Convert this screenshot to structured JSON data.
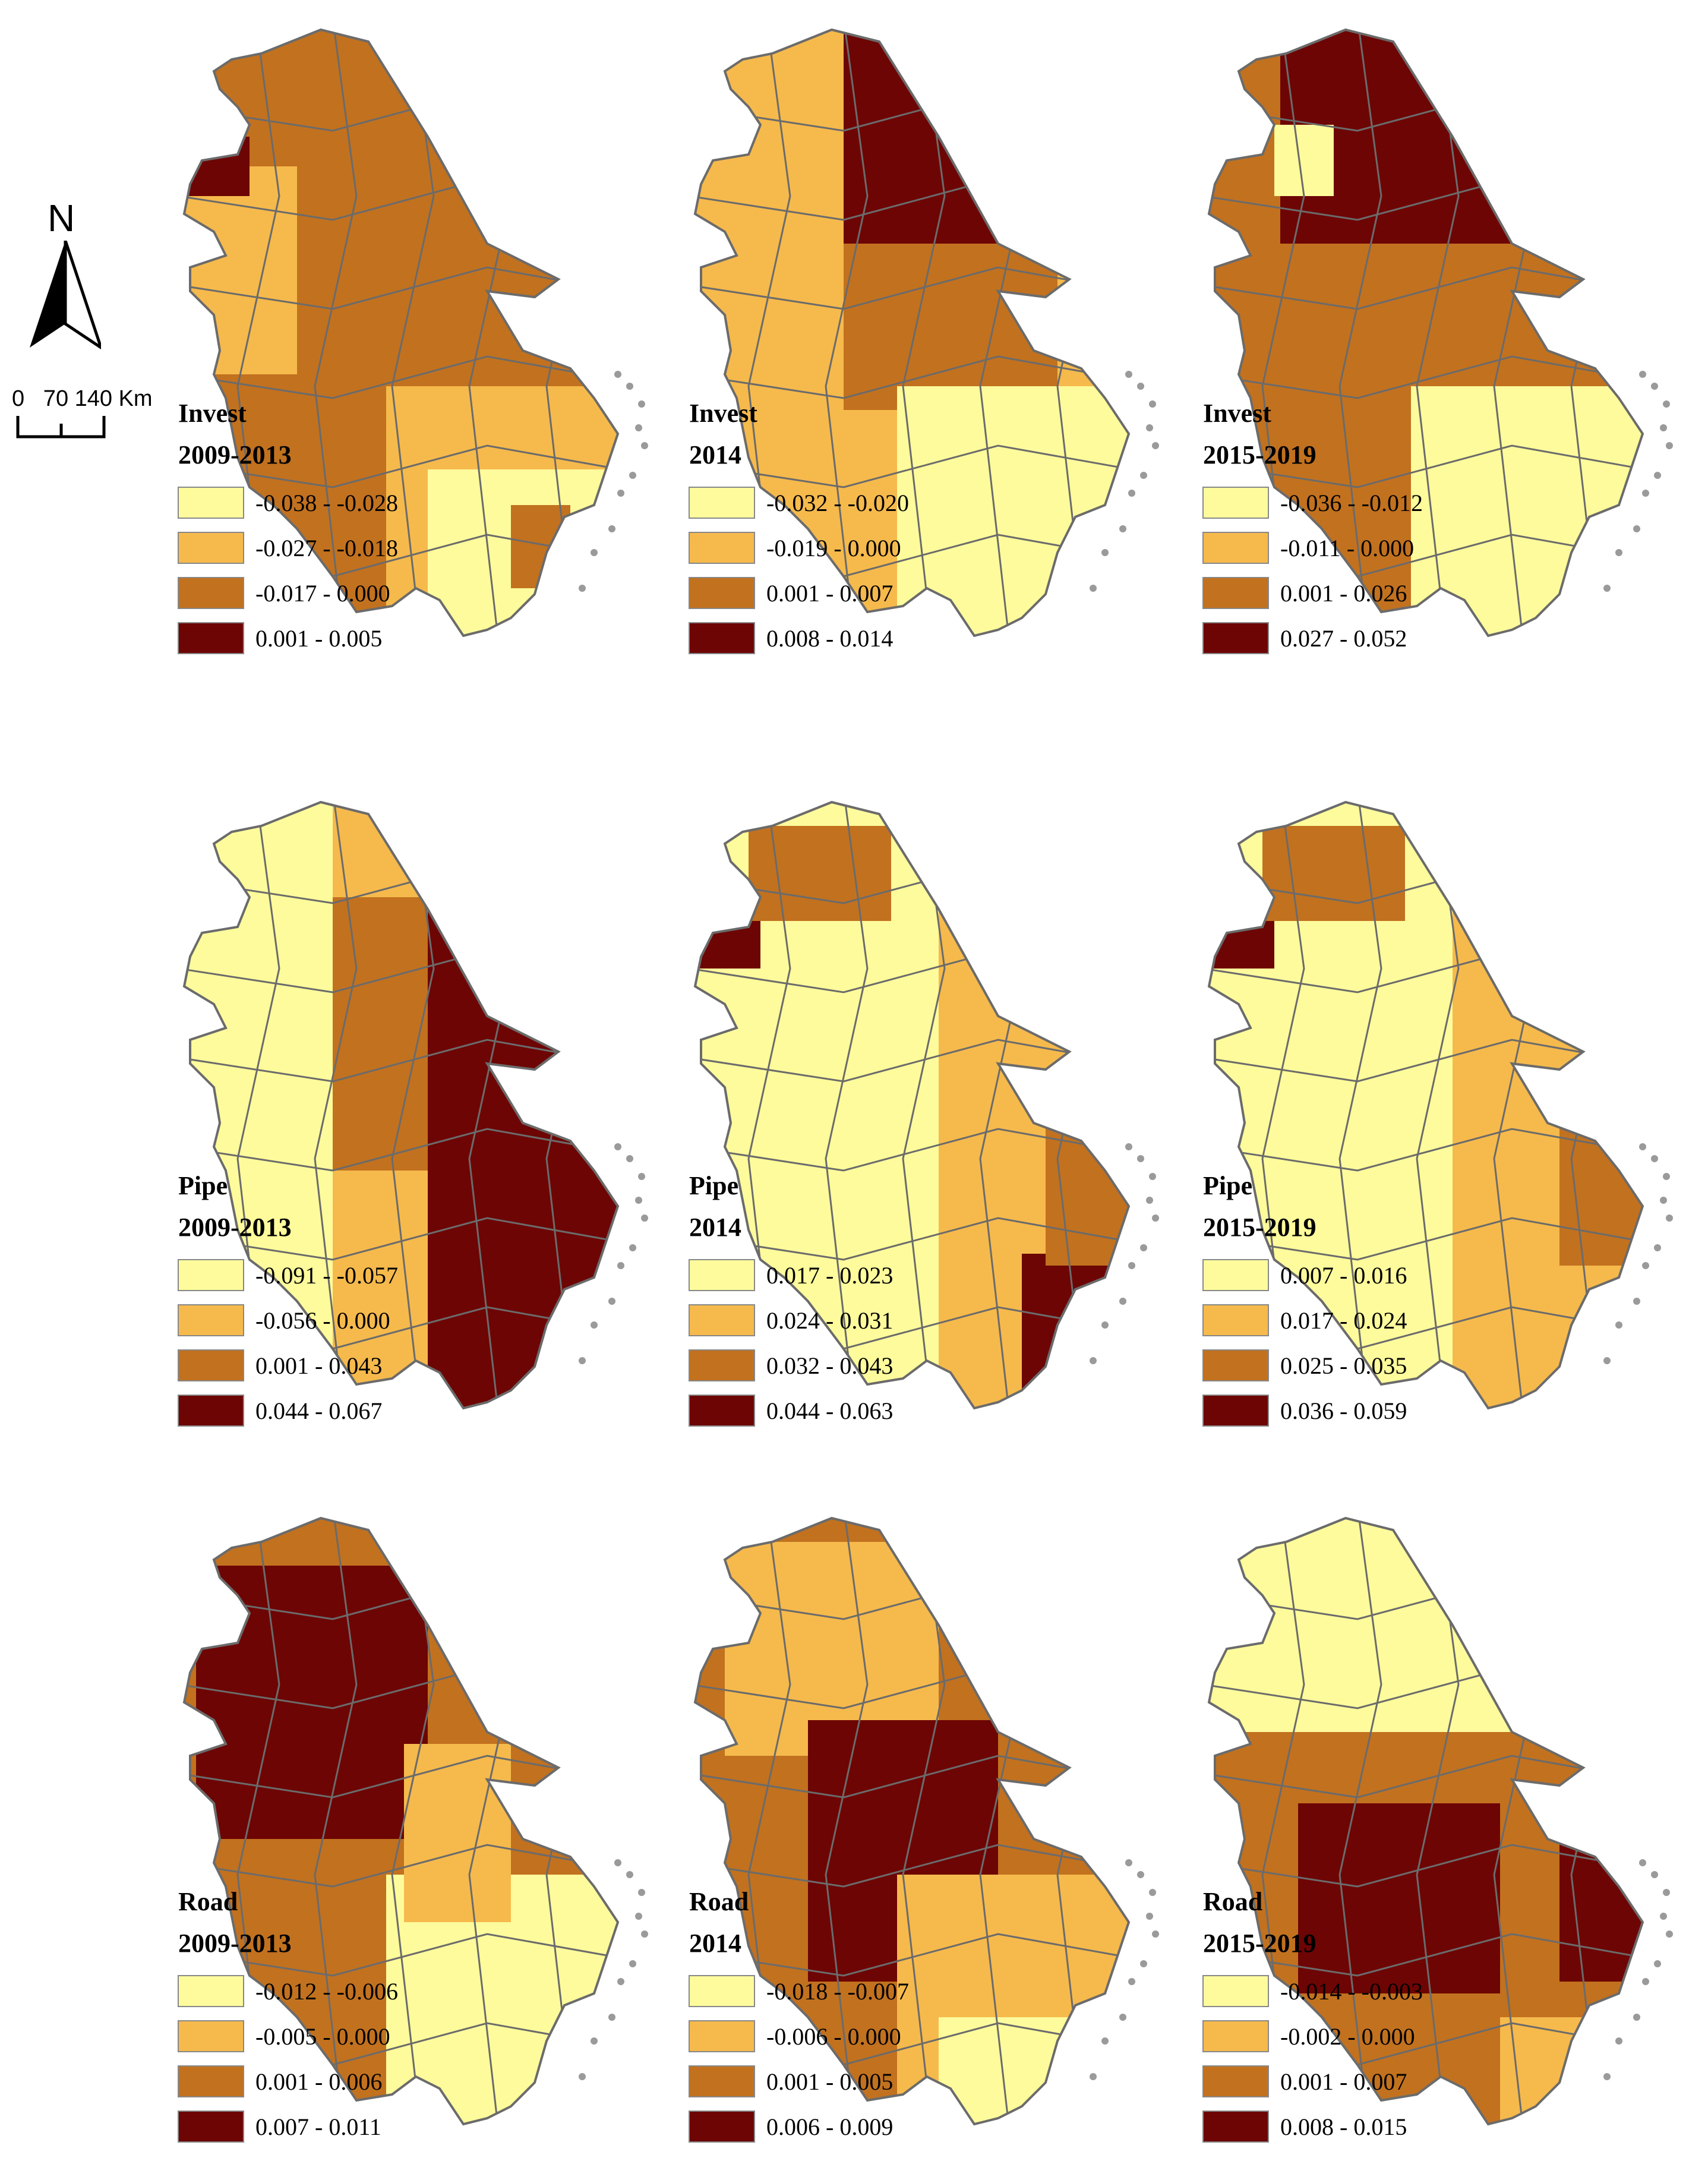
{
  "north_arrow": {
    "label": "N",
    "icon": "north-arrow-icon"
  },
  "scale_bar": {
    "label": "0   70 140 Km"
  },
  "colors": [
    "#fefb9c",
    "#f5b94c",
    "#c2711f",
    "#6e0505"
  ],
  "outline_color": "#6b6b6b",
  "coast_color": "#9a9a9a",
  "panels": [
    {
      "variable": "Invest",
      "period": "2009-2013",
      "legend": [
        "-0.038 - -0.028",
        "-0.027 - -0.018",
        "-0.017 - 0.000",
        "0.001 - 0.005"
      ]
    },
    {
      "variable": "Invest",
      "period": "2014",
      "legend": [
        "-0.032 - -0.020",
        "-0.019 - 0.000",
        "0.001 - 0.007",
        "0.008 - 0.014"
      ]
    },
    {
      "variable": "Invest",
      "period": "2015-2019",
      "legend": [
        "-0.036 - -0.012",
        "-0.011 - 0.000",
        "0.001 - 0.026",
        "0.027 - 0.052"
      ]
    },
    {
      "variable": "Pipe",
      "period": "2009-2013",
      "legend": [
        "-0.091 - -0.057",
        "-0.056 - 0.000",
        "0.001 - 0.043",
        "0.044 - 0.067"
      ]
    },
    {
      "variable": "Pipe",
      "period": "2014",
      "legend": [
        "0.017 - 0.023",
        "0.024 - 0.031",
        "0.032 - 0.043",
        "0.044 - 0.063"
      ]
    },
    {
      "variable": "Pipe",
      "period": "2015-2019",
      "legend": [
        "0.007 - 0.016",
        "0.017 - 0.024",
        "0.025 - 0.035",
        "0.036 - 0.059"
      ]
    },
    {
      "variable": "Road",
      "period": "2009-2013",
      "legend": [
        "-0.012 - -0.006",
        "-0.005 - 0.000",
        "0.001 - 0.006",
        "0.007 - 0.011"
      ]
    },
    {
      "variable": "Road",
      "period": "2014",
      "legend": [
        "-0.018 - -0.007",
        "-0.006 - 0.000",
        "0.001 - 0.005",
        "0.006 - 0.009"
      ]
    },
    {
      "variable": "Road",
      "period": "2015-2019",
      "legend": [
        "-0.014 - -0.003",
        "-0.002 - 0.000",
        "0.001 - 0.007",
        "0.008 - 0.015"
      ]
    }
  ]
}
